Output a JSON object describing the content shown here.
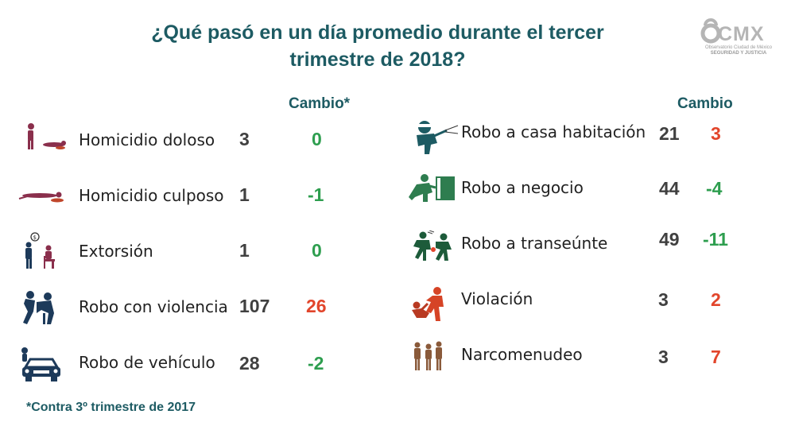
{
  "title": {
    "line1": "¿Qué pasó en un día promedio durante el tercer",
    "line2": "trimestre de 2018?"
  },
  "logo": {
    "text": "CMX",
    "sub1": "Observatorio Ciudad de México",
    "sub2": "SEGURIDAD Y JUSTICIA"
  },
  "left_header": "Cambio*",
  "right_header": "Cambio",
  "left": [
    {
      "label": "Homicidio doloso",
      "count": "3",
      "change": "0",
      "icon": "homicide-icon"
    },
    {
      "label": "Homicidio culposo",
      "count": "1",
      "change": "-1",
      "icon": "body-icon"
    },
    {
      "label": "Extorsión",
      "count": "1",
      "change": "0",
      "icon": "extortion-icon"
    },
    {
      "label": "Robo con violencia",
      "count": "107",
      "change": "26",
      "icon": "violent-robbery-icon"
    },
    {
      "label": "Robo de vehículo",
      "count": "28",
      "change": "-2",
      "icon": "car-icon"
    }
  ],
  "right": [
    {
      "label": "Robo a casa habitación",
      "count": "21",
      "change": "3",
      "icon": "burglar-icon"
    },
    {
      "label": "Robo a negocio",
      "count": "44",
      "change": "-4",
      "icon": "business-robbery-icon"
    },
    {
      "label": "Robo a transeúnte",
      "count": "49",
      "change": "-11",
      "icon": "pedestrian-robbery-icon"
    },
    {
      "label": "Violación",
      "count": "3",
      "change": "2",
      "icon": "assault-icon"
    },
    {
      "label": "Narcomenudeo",
      "count": "3",
      "change": "7",
      "icon": "drugs-icon"
    }
  ],
  "footnote": "*Contra 3º trimestre de 2017",
  "colors": {
    "teal": "#1d5b63",
    "green": "#2e9e4f",
    "red": "#e2452b",
    "maroon": "#8a2f4c",
    "orange": "#c0462b"
  }
}
